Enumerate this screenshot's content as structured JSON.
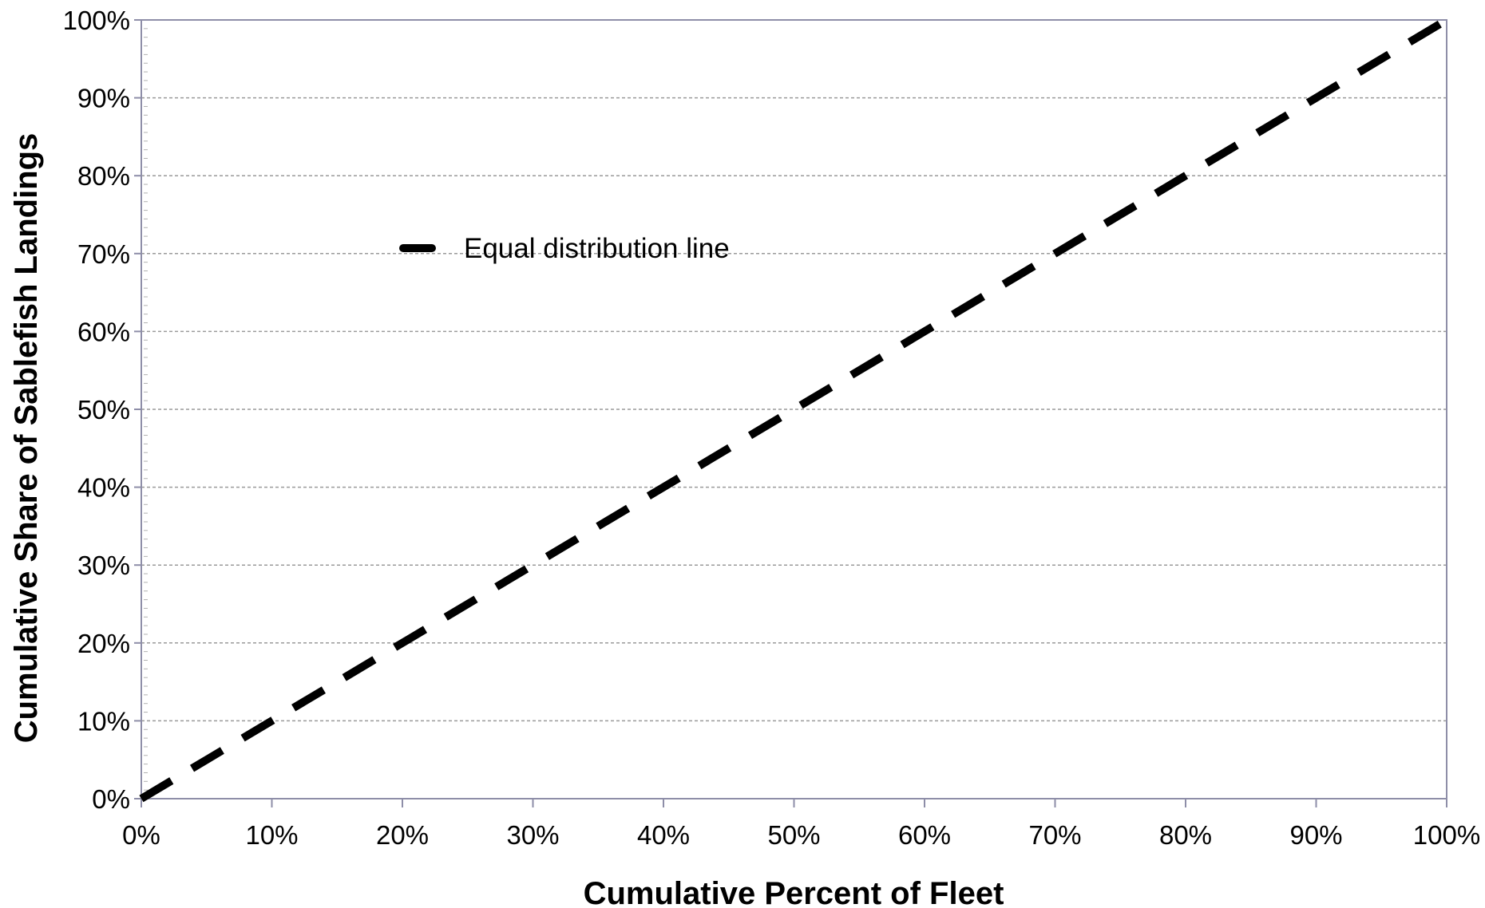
{
  "chart_data": {
    "type": "line",
    "title": "",
    "xlabel": "Cumulative Percent of Fleet",
    "ylabel": "Cumulative Share of Sablefish Landings",
    "xlim": [
      0,
      100
    ],
    "ylim": [
      0,
      100
    ],
    "x_ticks": [
      "0%",
      "10%",
      "20%",
      "30%",
      "40%",
      "50%",
      "60%",
      "70%",
      "80%",
      "90%",
      "100%"
    ],
    "y_ticks": [
      "0%",
      "10%",
      "20%",
      "30%",
      "40%",
      "50%",
      "60%",
      "70%",
      "80%",
      "90%",
      "100%"
    ],
    "grid": "horizontal dashed gridlines",
    "legend_position": "upper-left inside plot",
    "series": [
      {
        "name": "Equal distribution line",
        "style": "dashed",
        "color": "#000000",
        "x": [
          0,
          100
        ],
        "y": [
          0,
          100
        ]
      }
    ]
  }
}
